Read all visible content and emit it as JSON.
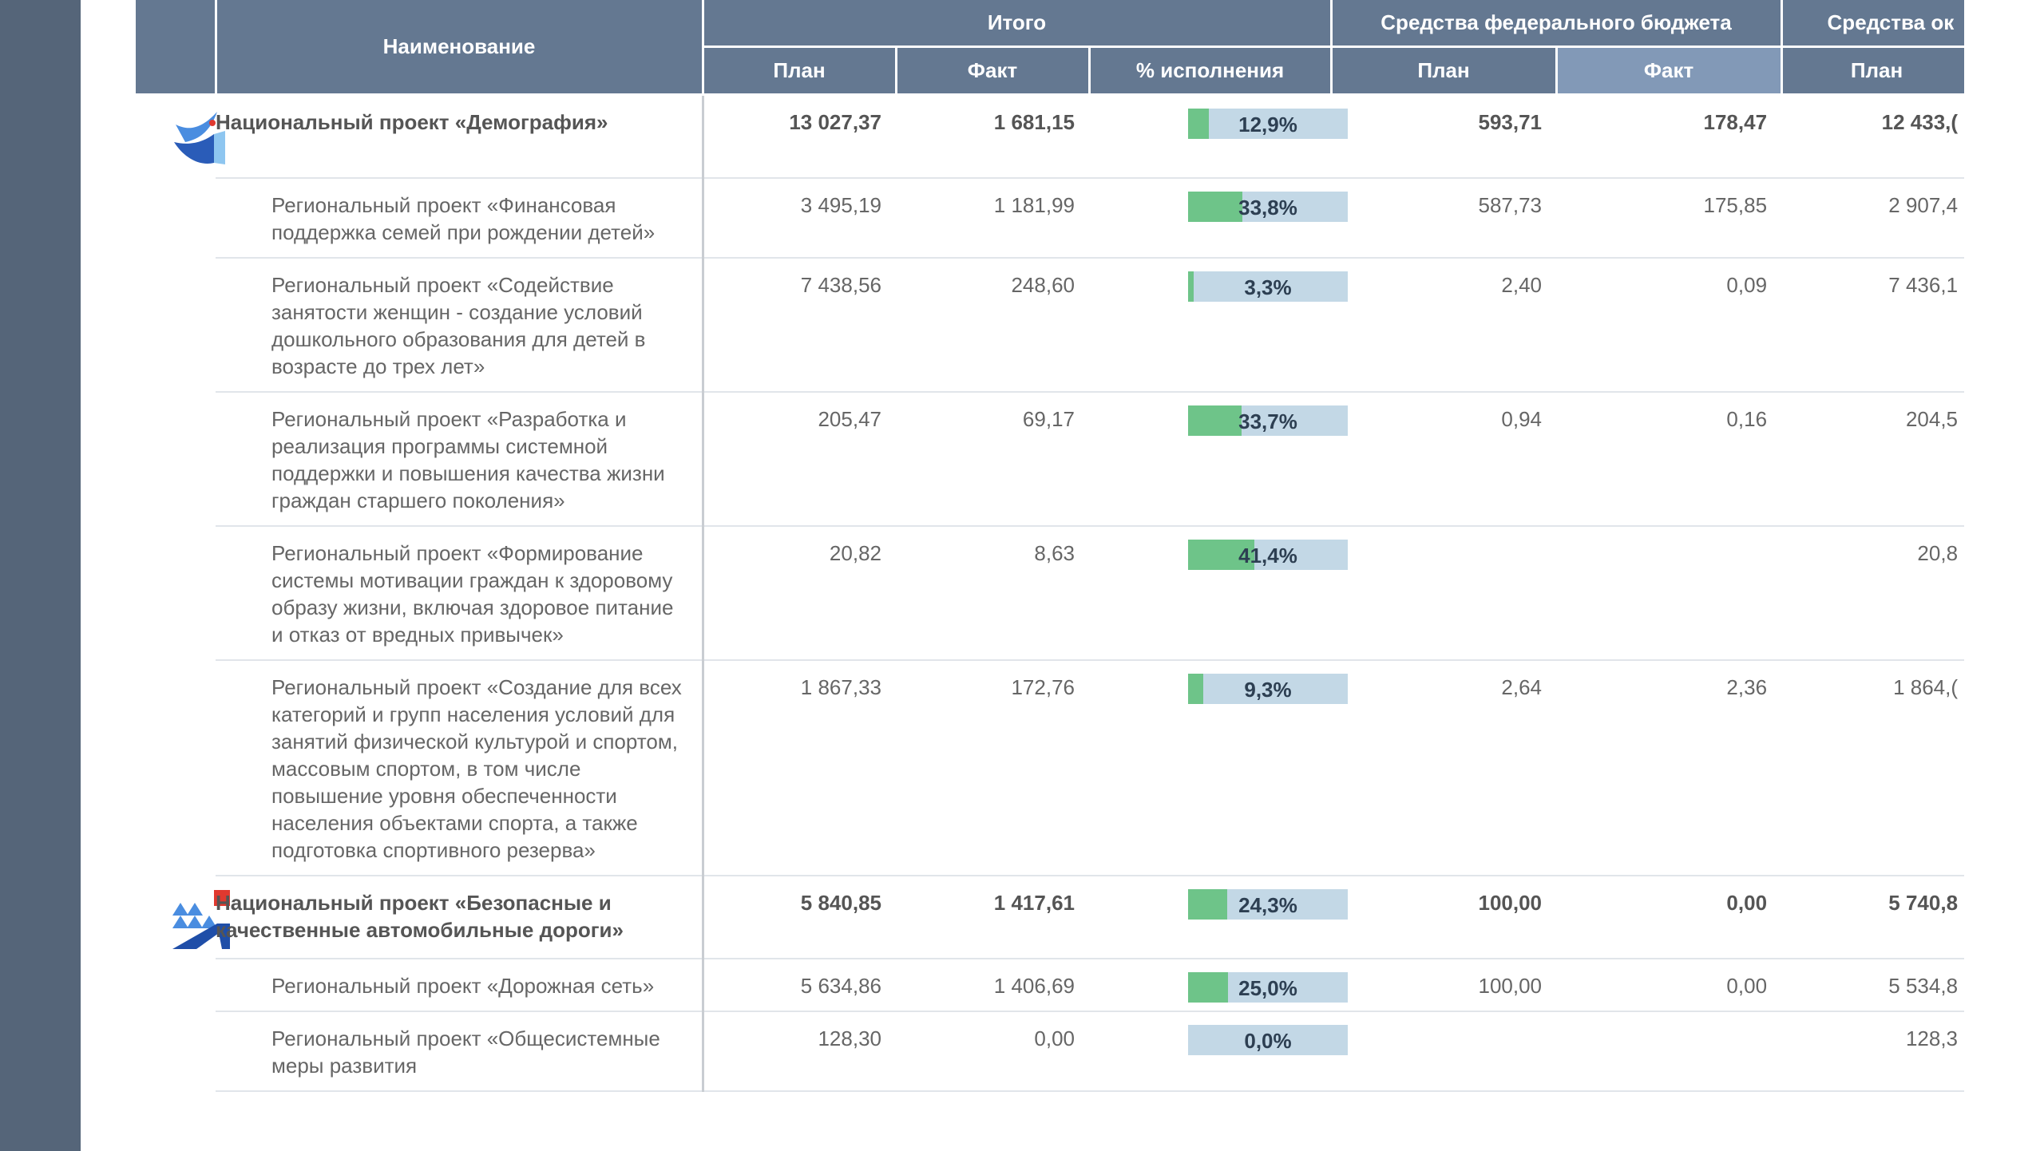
{
  "header": {
    "name_col": "Наименование",
    "group_total": "Итого",
    "group_federal": "Средства федерального бюджета",
    "group_regional": "Средства ок",
    "sub_plan": "План",
    "sub_fact": "Факт",
    "sub_pct": "% исполнения",
    "fed_plan": "План",
    "fed_fact": "Факт",
    "reg_plan": "План"
  },
  "rows": [
    {
      "type": "national",
      "icon": "demography-bird-logo",
      "name": "Национальный проект «Демография»",
      "plan": "13 027,37",
      "fact": "1 681,15",
      "pct": "12,9%",
      "pct_value": 12.9,
      "fed_plan": "593,71",
      "fed_fact": "178,47",
      "reg_plan": "12 433,("
    },
    {
      "type": "regional",
      "name": "Региональный проект «Финансовая поддержка семей при рождении детей»",
      "plan": "3 495,19",
      "fact": "1 181,99",
      "pct": "33,8%",
      "pct_value": 33.8,
      "fed_plan": "587,73",
      "fed_fact": "175,85",
      "reg_plan": "2 907,4"
    },
    {
      "type": "regional",
      "name": "Региональный проект «Содействие занятости женщин - создание условий дошкольного образования для детей в возрасте до трех лет»",
      "plan": "7 438,56",
      "fact": "248,60",
      "pct": "3,3%",
      "pct_value": 3.3,
      "fed_plan": "2,40",
      "fed_fact": "0,09",
      "reg_plan": "7 436,1"
    },
    {
      "type": "regional",
      "name": "Региональный проект «Разработка и реализация программы системной поддержки и повышения качества жизни граждан старшего поколения»",
      "plan": "205,47",
      "fact": "69,17",
      "pct": "33,7%",
      "pct_value": 33.7,
      "fed_plan": "0,94",
      "fed_fact": "0,16",
      "reg_plan": "204,5"
    },
    {
      "type": "regional",
      "name": "Региональный проект «Формирование системы мотивации граждан к здоровому образу жизни, включая здоровое питание и отказ от вредных привычек»",
      "plan": "20,82",
      "fact": "8,63",
      "pct": "41,4%",
      "pct_value": 41.4,
      "fed_plan": "",
      "fed_fact": "",
      "reg_plan": "20,8"
    },
    {
      "type": "regional",
      "name": "Региональный проект «Создание для всех категорий и групп населения условий для занятий физической культурой и спортом, массовым спортом, в том числе повышение уровня обеспеченности населения объектами спорта, а также подготовка спортивного резерва»",
      "plan": "1 867,33",
      "fact": "172,76",
      "pct": "9,3%",
      "pct_value": 9.3,
      "fed_plan": "2,64",
      "fed_fact": "2,36",
      "reg_plan": "1 864,("
    },
    {
      "type": "national",
      "icon": "roads-logo",
      "name": "Национальный проект «Безопасные и качественные автомобильные дороги»",
      "plan": "5 840,85",
      "fact": "1 417,61",
      "pct": "24,3%",
      "pct_value": 24.3,
      "fed_plan": "100,00",
      "fed_fact": "0,00",
      "reg_plan": "5 740,8"
    },
    {
      "type": "regional",
      "name": "Региональный проект «Дорожная сеть»",
      "plan": "5 634,86",
      "fact": "1 406,69",
      "pct": "25,0%",
      "pct_value": 25.0,
      "fed_plan": "100,00",
      "fed_fact": "0,00",
      "reg_plan": "5 534,8"
    },
    {
      "type": "regional",
      "name": "Региональный проект «Общесистемные меры развития",
      "plan": "128,30",
      "fact": "0,00",
      "pct": "0,0%",
      "pct_value": 0.0,
      "fed_plan": "",
      "fed_fact": "",
      "reg_plan": "128,3"
    }
  ],
  "colors": {
    "header": "#647891",
    "header_highlight": "#8299b7",
    "bar_fill": "#6ec489",
    "bar_bg": "#c3d8e6",
    "sidebar": "#556579"
  }
}
